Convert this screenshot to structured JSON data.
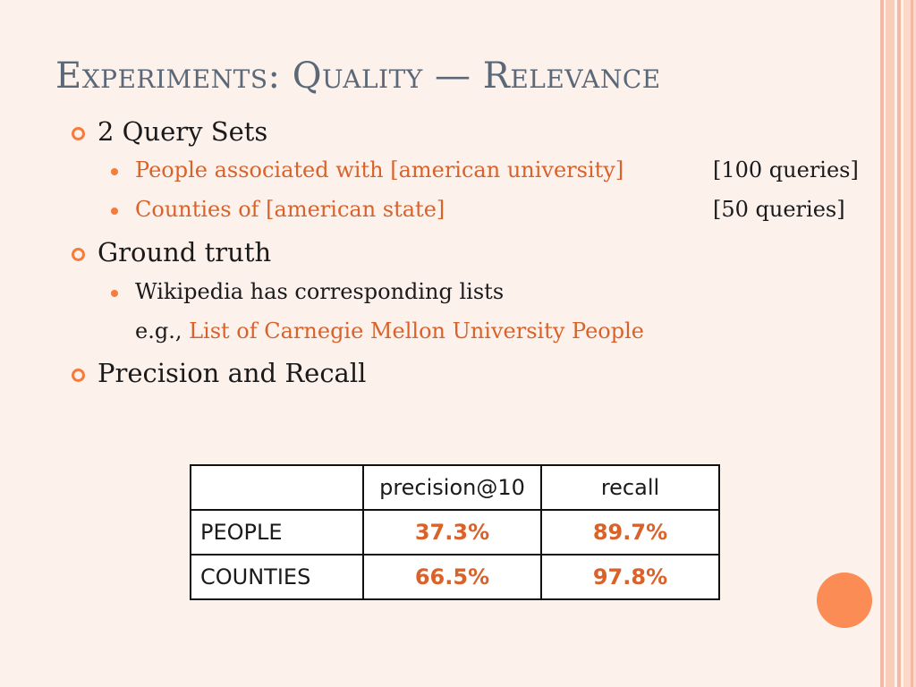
{
  "title": "Experiments: Quality — Relevance",
  "bullets": [
    {
      "label": "2 Query Sets",
      "sub": [
        {
          "label": "People associated with [american university]",
          "note": "[100 queries]"
        },
        {
          "label": "Counties of [american state]",
          "note": "[50 queries]"
        }
      ]
    },
    {
      "label": "Ground truth",
      "sub": [
        {
          "label": "Wikipedia has corresponding lists",
          "eg_prefix": "e.g.,",
          "eg_link": "List of Carnegie Mellon University People"
        }
      ]
    },
    {
      "label": "Precision and Recall"
    }
  ],
  "table": {
    "headers": [
      "",
      "precision@10",
      "recall"
    ],
    "rows": [
      {
        "label": "PEOPLE",
        "precision": "37.3%",
        "recall": "89.7%"
      },
      {
        "label": "COUNTIES",
        "precision": "66.5%",
        "recall": "97.8%"
      }
    ]
  },
  "colors": {
    "background": "#fdf1ec",
    "accent": "#f47c3c",
    "highlight_text": "#d9622a",
    "title": "#5b6878"
  }
}
